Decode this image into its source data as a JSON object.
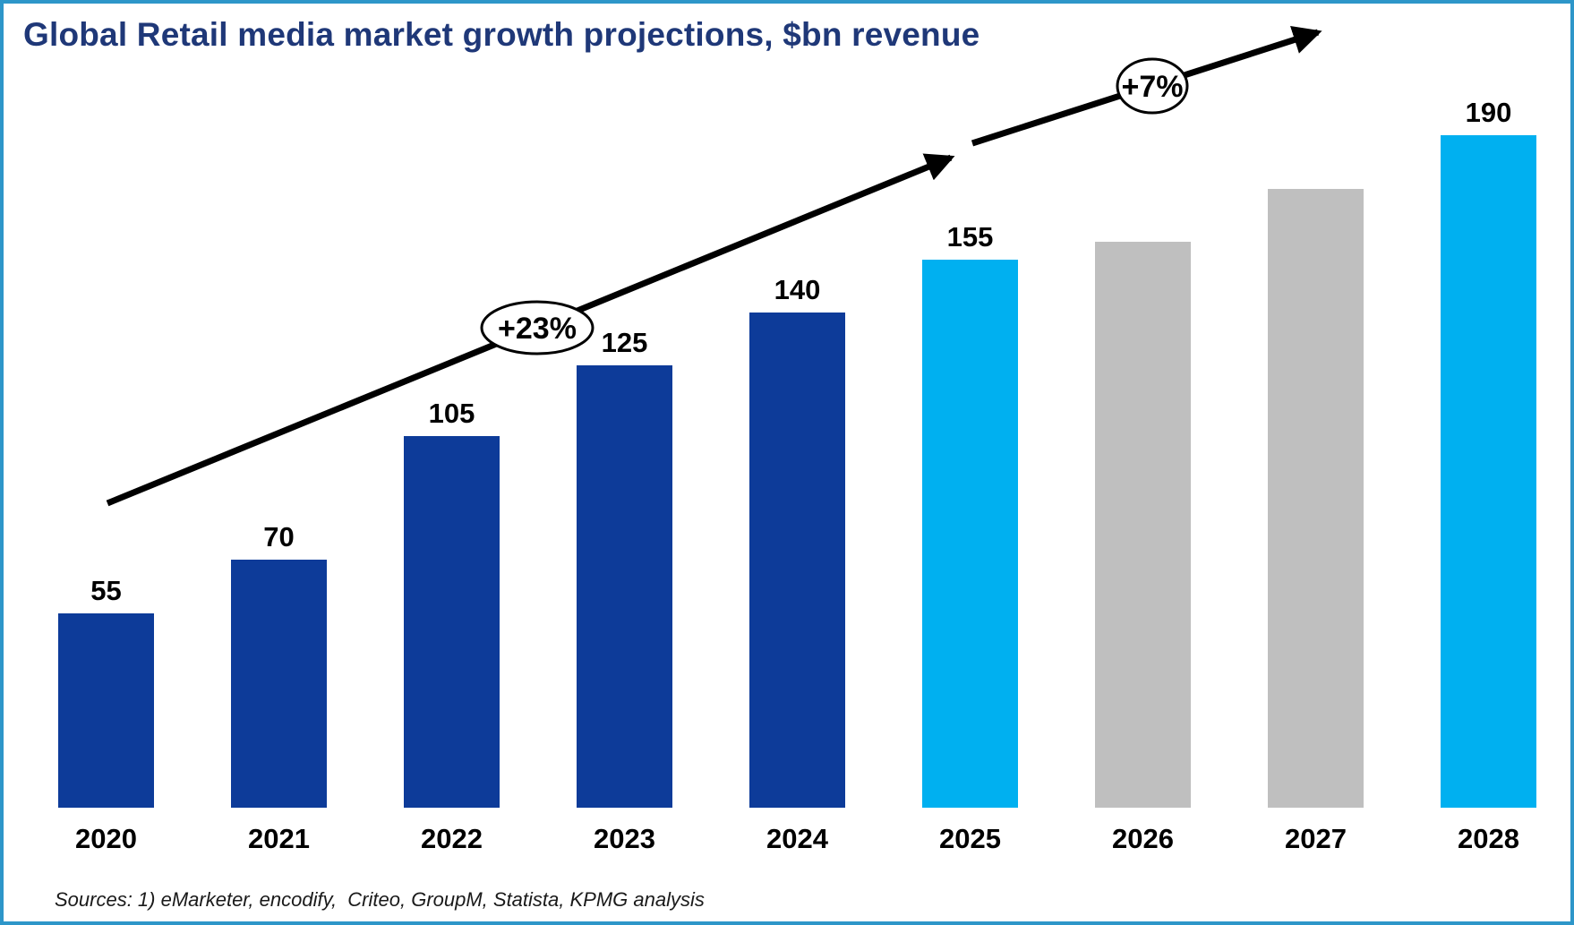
{
  "slide": {
    "title": "Global Retail media market growth projections, $bn revenue",
    "source_note": "Sources: 1) eMarketer, encodify,  Criteo, GroupM, Statista, KPMG analysis"
  },
  "chart_data": {
    "type": "bar",
    "title": "Global Retail media market growth projections, $bn revenue",
    "xlabel": "",
    "ylabel": "$bn revenue",
    "ylim": [
      0,
      200
    ],
    "grid": false,
    "legend": false,
    "categories": [
      "2020",
      "2021",
      "2022",
      "2023",
      "2024",
      "2025",
      "2026",
      "2027",
      "2028"
    ],
    "values": [
      55,
      70,
      105,
      125,
      140,
      155,
      160,
      175,
      190
    ],
    "bars": [
      {
        "year": "2020",
        "value": 55,
        "label": "55",
        "segment": "historical"
      },
      {
        "year": "2021",
        "value": 70,
        "label": "70",
        "segment": "historical"
      },
      {
        "year": "2022",
        "value": 105,
        "label": "105",
        "segment": "historical"
      },
      {
        "year": "2023",
        "value": 125,
        "label": "125",
        "segment": "historical"
      },
      {
        "year": "2024",
        "value": 140,
        "label": "140",
        "segment": "historical"
      },
      {
        "year": "2025",
        "value": 155,
        "label": "155",
        "segment": "projection_highlight"
      },
      {
        "year": "2026",
        "value": 160,
        "label": "",
        "segment": "projection_neutral"
      },
      {
        "year": "2027",
        "value": 175,
        "label": "",
        "segment": "projection_neutral"
      },
      {
        "year": "2028",
        "value": 190,
        "label": "190",
        "segment": "projection_highlight"
      }
    ],
    "annotations": [
      {
        "text": "+23%"
      },
      {
        "text": "+7%"
      }
    ],
    "colors": {
      "historical": "#0D3B99",
      "projection_highlight": "#00B0F0",
      "projection_neutral": "#BFBFBF",
      "title_text": "#1F3878",
      "border": "#2D96C9",
      "arrow": "#000000"
    },
    "source_note": "Sources: 1) eMarketer, encodify,  Criteo, GroupM, Statista, KPMG analysis"
  }
}
